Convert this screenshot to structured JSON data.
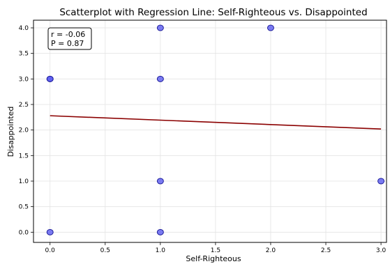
{
  "chart_data": {
    "type": "scatter",
    "title": "Scatterplot with Regression Line: Self-Righteous vs. Disappointed",
    "xlabel": "Self-Righteous",
    "ylabel": "Disappointed",
    "xlim": [
      -0.15,
      3.05
    ],
    "ylim": [
      -0.2,
      4.15
    ],
    "xticks": [
      "0.0",
      "0.5",
      "1.0",
      "1.5",
      "2.0",
      "2.5",
      "3.0"
    ],
    "yticks": [
      "0.0",
      "0.5",
      "1.0",
      "1.5",
      "2.0",
      "2.5",
      "3.0",
      "3.5",
      "4.0"
    ],
    "grid": true,
    "points": [
      {
        "x": 0,
        "y": 3
      },
      {
        "x": 0,
        "y": 3
      },
      {
        "x": 0,
        "y": 0
      },
      {
        "x": 1,
        "y": 4
      },
      {
        "x": 1,
        "y": 3
      },
      {
        "x": 1,
        "y": 1
      },
      {
        "x": 1,
        "y": 0
      },
      {
        "x": 2,
        "y": 4
      },
      {
        "x": 3,
        "y": 1
      }
    ],
    "regression": {
      "x": [
        0,
        3
      ],
      "y": [
        2.28,
        2.02
      ]
    },
    "stats": {
      "r": "r = -0.06",
      "p": "P = 0.87"
    },
    "colors": {
      "point_fill": "#5b5bf0",
      "point_edge": "#1c1c9a",
      "regression": "#8b0000"
    }
  }
}
